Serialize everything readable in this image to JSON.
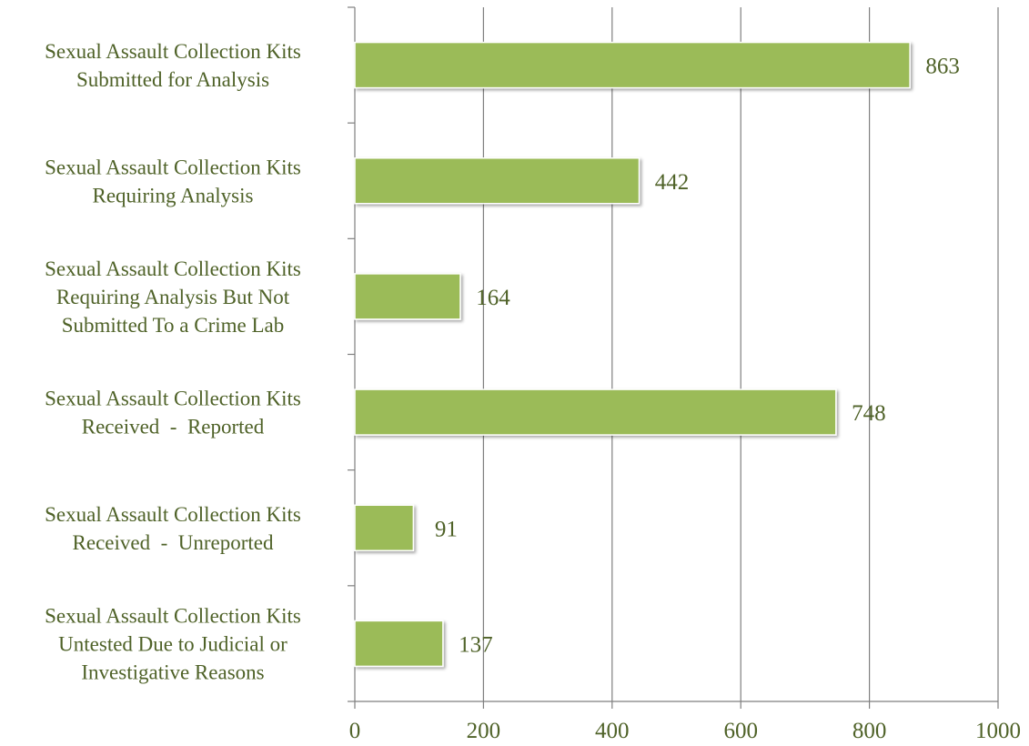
{
  "chart_data": {
    "type": "bar",
    "orientation": "horizontal",
    "categories": [
      [
        "Sexual Assault Collection Kits",
        "Submitted for Analysis"
      ],
      [
        "Sexual Assault Collection Kits",
        "Requiring Analysis"
      ],
      [
        "Sexual Assault Collection Kits",
        "Requiring Analysis But Not",
        "Submitted To a Crime Lab"
      ],
      [
        "Sexual Assault Collection Kits",
        "Received  -  Reported"
      ],
      [
        "Sexual Assault Collection Kits",
        "Received  -  Unreported"
      ],
      [
        "Sexual Assault Collection Kits",
        "Untested Due to Judicial or",
        "Investigative Reasons"
      ]
    ],
    "values": [
      863,
      442,
      164,
      748,
      91,
      137
    ],
    "data_labels": [
      "863",
      "442",
      "164",
      "748",
      "91",
      "137"
    ],
    "xlim": [
      0,
      1000
    ],
    "xticks": [
      "0",
      "200",
      "400",
      "600",
      "800",
      "1000"
    ],
    "title": "",
    "xlabel": "",
    "ylabel": "",
    "grid": "vertical",
    "legend": "none",
    "colors": {
      "bar": "#9bbb59",
      "bar_edge": "#ffffff",
      "grid": "#7f7f7f",
      "axis": "#7f7f7f",
      "text": "#4f6228"
    }
  }
}
